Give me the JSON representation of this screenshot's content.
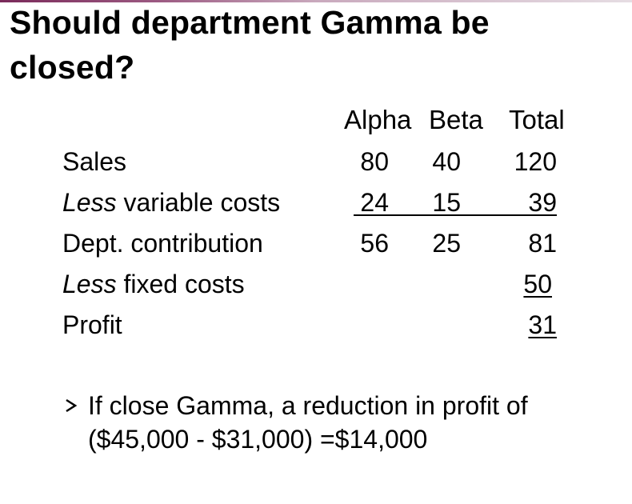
{
  "title": "Should department Gamma be closed?",
  "table": {
    "headers": {
      "alpha": "Alpha",
      "beta": "Beta",
      "total": "Total"
    },
    "rows": [
      {
        "label_italic": "",
        "label": "Sales",
        "alpha": "80",
        "beta": "40",
        "total": "120"
      },
      {
        "label_italic": "Less",
        "label": " variable costs",
        "alpha": "24",
        "beta": "15",
        "total": "39"
      },
      {
        "label_italic": "",
        "label": "Dept. contribution",
        "alpha": "56",
        "beta": "25",
        "total": "81"
      },
      {
        "label_italic": "Less",
        "label": " fixed costs",
        "alpha": "",
        "beta": "",
        "total": "50"
      },
      {
        "label_italic": "",
        "label": "Profit",
        "alpha": "",
        "beta": "",
        "total": "31"
      }
    ]
  },
  "bullet": {
    "icon": "arrowhead-bullet-icon",
    "line1": "If close Gamma, a reduction in profit of",
    "line2": "($45,000 - $31,000) =$14,000"
  },
  "colors": {
    "accent": "#7a2a5a",
    "text": "#000000",
    "background": "#ffffff"
  }
}
